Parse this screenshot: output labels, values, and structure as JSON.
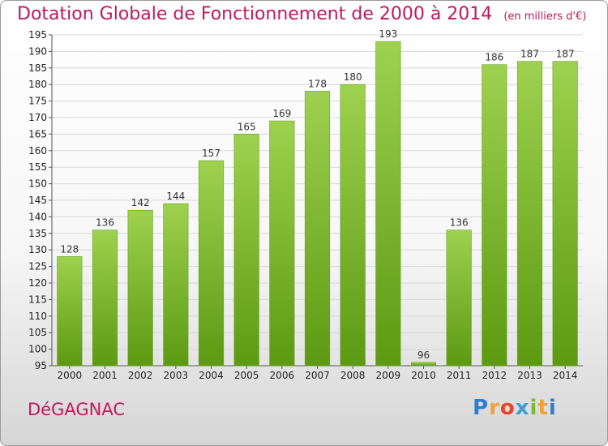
{
  "header": {
    "title": "Dotation Globale de Fonctionnement de 2000 à 2014",
    "unit": "(en milliers d'€)"
  },
  "footer": {
    "commune": "DéGAGNAC",
    "logo": "Proxiti",
    "logo_colors": [
      "#2e7dd1",
      "#f0a23a",
      "#e8452c",
      "#3aa0d8",
      "#7cb63a",
      "#f0a23a",
      "#2e7dd1"
    ]
  },
  "colors": {
    "title": "#c2185b",
    "bar_top": "#9ed14f",
    "bar_bottom": "#5c9a12",
    "grid": "#d8d8d8"
  },
  "chart_data": {
    "type": "bar",
    "title": "Dotation Globale de Fonctionnement de 2000 à 2014",
    "subtitle": "(en milliers d'€)",
    "categories": [
      "2000",
      "2001",
      "2002",
      "2003",
      "2004",
      "2005",
      "2006",
      "2007",
      "2008",
      "2009",
      "2010",
      "2011",
      "2012",
      "2013",
      "2014"
    ],
    "values": [
      128,
      136,
      142,
      144,
      157,
      165,
      169,
      178,
      180,
      193,
      96,
      136,
      186,
      187,
      187
    ],
    "ylim": [
      95,
      195
    ],
    "yticks": [
      95,
      100,
      105,
      110,
      115,
      120,
      125,
      130,
      135,
      140,
      145,
      150,
      155,
      160,
      165,
      170,
      175,
      180,
      185,
      190,
      195
    ],
    "grid": true
  }
}
